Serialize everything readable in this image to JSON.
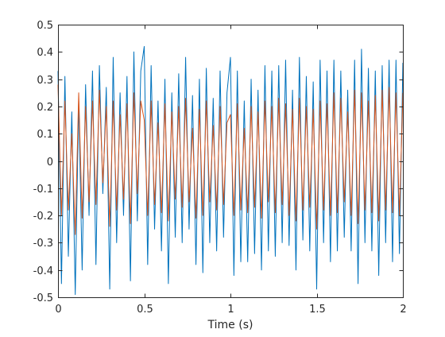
{
  "chart_data": {
    "type": "line",
    "xlabel": "Time (s)",
    "ylabel": "",
    "title": "",
    "xlim": [
      0,
      2
    ],
    "ylim": [
      -0.5,
      0.5
    ],
    "xticks": [
      0,
      0.5,
      1,
      1.5,
      2
    ],
    "xtick_labels": [
      "0",
      "0.5",
      "1",
      "1.5",
      "2"
    ],
    "yticks": [
      -0.5,
      -0.4,
      -0.3,
      -0.2,
      -0.1,
      0,
      0.1,
      0.2,
      0.3,
      0.4,
      0.5
    ],
    "ytick_labels": [
      "-0.5",
      "-0.4",
      "-0.3",
      "-0.2",
      "-0.1",
      "0",
      "0.1",
      "0.2",
      "0.3",
      "0.4",
      "0.5"
    ],
    "grid": false,
    "legend": "none",
    "series": [
      {
        "color": "#0072BD",
        "x": [
          0.0,
          0.02,
          0.04,
          0.06,
          0.08,
          0.1,
          0.12,
          0.14,
          0.16,
          0.18,
          0.2,
          0.22,
          0.24,
          0.26,
          0.28,
          0.3,
          0.32,
          0.34,
          0.36,
          0.38,
          0.4,
          0.42,
          0.44,
          0.46,
          0.48,
          0.5,
          0.52,
          0.54,
          0.56,
          0.58,
          0.6,
          0.62,
          0.64,
          0.66,
          0.68,
          0.7,
          0.72,
          0.74,
          0.76,
          0.78,
          0.8,
          0.82,
          0.84,
          0.86,
          0.88,
          0.9,
          0.92,
          0.94,
          0.96,
          0.98,
          1.0,
          1.02,
          1.04,
          1.06,
          1.08,
          1.1,
          1.12,
          1.14,
          1.16,
          1.18,
          1.2,
          1.22,
          1.24,
          1.26,
          1.28,
          1.3,
          1.32,
          1.34,
          1.36,
          1.38,
          1.4,
          1.42,
          1.44,
          1.46,
          1.48,
          1.5,
          1.52,
          1.54,
          1.56,
          1.58,
          1.6,
          1.62,
          1.64,
          1.66,
          1.68,
          1.7,
          1.72,
          1.74,
          1.76,
          1.78,
          1.8,
          1.82,
          1.84,
          1.86,
          1.88,
          1.9,
          1.92,
          1.94,
          1.96,
          1.98,
          2.0
        ],
        "y": [
          0.33,
          -0.45,
          0.31,
          -0.35,
          0.18,
          -0.49,
          0.22,
          -0.4,
          0.28,
          -0.2,
          0.33,
          -0.38,
          0.35,
          -0.12,
          0.27,
          -0.47,
          0.38,
          -0.3,
          0.25,
          -0.2,
          0.31,
          -0.44,
          0.4,
          -0.22,
          0.33,
          0.42,
          -0.38,
          0.35,
          -0.25,
          0.22,
          -0.33,
          0.3,
          -0.45,
          0.25,
          -0.28,
          0.32,
          -0.3,
          0.38,
          -0.25,
          0.24,
          -0.38,
          0.3,
          -0.41,
          0.34,
          -0.3,
          0.23,
          -0.33,
          0.33,
          -0.28,
          0.25,
          0.38,
          -0.42,
          0.33,
          -0.37,
          0.22,
          -0.37,
          0.3,
          -0.34,
          0.26,
          -0.4,
          0.35,
          -0.33,
          0.33,
          -0.35,
          0.35,
          -0.3,
          0.37,
          -0.31,
          0.26,
          -0.4,
          0.38,
          -0.29,
          0.31,
          -0.33,
          0.29,
          -0.47,
          0.37,
          -0.3,
          0.33,
          -0.37,
          0.37,
          -0.33,
          0.33,
          -0.28,
          0.26,
          -0.33,
          0.37,
          -0.45,
          0.41,
          -0.3,
          0.34,
          -0.33,
          0.33,
          -0.42,
          0.35,
          -0.3,
          0.37,
          -0.37,
          0.37,
          -0.34,
          0.36
        ]
      },
      {
        "color": "#D95319",
        "x": [
          0.0,
          0.02,
          0.04,
          0.06,
          0.08,
          0.1,
          0.12,
          0.14,
          0.16,
          0.18,
          0.2,
          0.22,
          0.24,
          0.26,
          0.28,
          0.3,
          0.32,
          0.34,
          0.36,
          0.38,
          0.4,
          0.42,
          0.44,
          0.46,
          0.48,
          0.5,
          0.52,
          0.54,
          0.56,
          0.58,
          0.6,
          0.62,
          0.64,
          0.66,
          0.68,
          0.7,
          0.72,
          0.74,
          0.76,
          0.78,
          0.8,
          0.82,
          0.84,
          0.86,
          0.88,
          0.9,
          0.92,
          0.94,
          0.96,
          0.98,
          1.0,
          1.02,
          1.04,
          1.06,
          1.08,
          1.1,
          1.12,
          1.14,
          1.16,
          1.18,
          1.2,
          1.22,
          1.24,
          1.26,
          1.28,
          1.3,
          1.32,
          1.34,
          1.36,
          1.38,
          1.4,
          1.42,
          1.44,
          1.46,
          1.48,
          1.5,
          1.52,
          1.54,
          1.56,
          1.58,
          1.6,
          1.62,
          1.64,
          1.66,
          1.68,
          1.7,
          1.72,
          1.74,
          1.76,
          1.78,
          1.8,
          1.82,
          1.84,
          1.86,
          1.88,
          1.9,
          1.92,
          1.94,
          1.96,
          1.98,
          2.0
        ],
        "y": [
          0.28,
          -0.2,
          0.22,
          -0.18,
          0.1,
          -0.27,
          0.25,
          -0.21,
          0.2,
          -0.15,
          0.22,
          -0.16,
          0.26,
          -0.08,
          0.2,
          -0.24,
          0.22,
          -0.18,
          0.17,
          -0.14,
          0.21,
          -0.23,
          0.25,
          -0.12,
          0.22,
          0.15,
          -0.2,
          0.22,
          -0.16,
          0.14,
          -0.19,
          0.21,
          -0.22,
          0.18,
          -0.14,
          0.2,
          -0.17,
          0.23,
          -0.15,
          0.12,
          -0.21,
          0.19,
          -0.2,
          0.22,
          -0.15,
          0.13,
          -0.18,
          0.2,
          -0.16,
          0.14,
          0.17,
          -0.2,
          0.21,
          -0.18,
          0.12,
          -0.19,
          0.2,
          -0.17,
          0.18,
          -0.21,
          0.22,
          -0.15,
          0.2,
          -0.19,
          0.23,
          -0.16,
          0.21,
          -0.2,
          0.19,
          -0.22,
          0.23,
          -0.18,
          0.2,
          -0.17,
          0.19,
          -0.25,
          0.22,
          -0.18,
          0.21,
          -0.2,
          0.25,
          -0.19,
          0.23,
          -0.15,
          0.18,
          -0.2,
          0.26,
          -0.23,
          0.25,
          -0.18,
          0.22,
          -0.19,
          0.24,
          -0.22,
          0.26,
          -0.18,
          0.27,
          -0.19,
          0.25,
          -0.2,
          0.25
        ]
      }
    ]
  }
}
